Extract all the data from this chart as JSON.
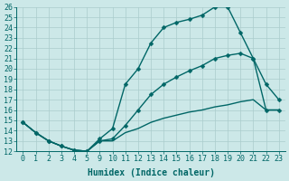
{
  "xlabel": "Humidex (Indice chaleur)",
  "ylabel": "",
  "background_color": "#cce8e8",
  "grid_color": "#aacccc",
  "line_color": "#006666",
  "xtick_labels": [
    "0",
    "1",
    "2",
    "3",
    "4",
    "5",
    "9",
    "10",
    "11",
    "12",
    "13",
    "14",
    "15",
    "16",
    "17",
    "18",
    "19",
    "20",
    "21",
    "22",
    "23"
  ],
  "yticks": [
    12,
    13,
    14,
    15,
    16,
    17,
    18,
    19,
    20,
    21,
    22,
    23,
    24,
    25,
    26
  ],
  "ylim": [
    12,
    26
  ],
  "series": [
    {
      "xi": [
        0,
        1,
        2,
        3,
        4,
        5,
        6,
        7,
        8,
        9,
        10,
        11,
        12,
        13,
        14,
        15,
        16,
        17,
        18,
        19,
        20
      ],
      "y": [
        14.8,
        13.8,
        13.0,
        12.5,
        12.1,
        12.0,
        13.2,
        14.2,
        18.5,
        20.0,
        22.5,
        24.0,
        24.5,
        24.8,
        25.2,
        26.0,
        26.0,
        23.5,
        21.0,
        18.5,
        17.0
      ],
      "marker": true
    },
    {
      "xi": [
        0,
        1,
        2,
        3,
        4,
        5,
        6,
        7,
        8,
        9,
        10,
        11,
        12,
        13,
        14,
        15,
        16,
        17,
        18,
        19,
        20
      ],
      "y": [
        14.8,
        13.8,
        13.0,
        12.5,
        12.1,
        12.0,
        13.0,
        13.2,
        14.5,
        16.0,
        17.5,
        18.5,
        19.2,
        19.8,
        20.3,
        21.0,
        21.3,
        21.5,
        21.0,
        16.0,
        16.0
      ],
      "marker": true
    },
    {
      "xi": [
        0,
        1,
        2,
        3,
        4,
        5,
        6,
        7,
        8,
        9,
        10,
        11,
        12,
        13,
        14,
        15,
        16,
        17,
        18,
        19,
        20
      ],
      "y": [
        14.8,
        13.8,
        13.0,
        12.5,
        12.1,
        12.0,
        13.0,
        13.0,
        13.8,
        14.2,
        14.8,
        15.2,
        15.5,
        15.8,
        16.0,
        16.3,
        16.5,
        16.8,
        17.0,
        16.0,
        16.0
      ],
      "marker": false
    }
  ],
  "marker_size": 2.5,
  "line_width": 1.0,
  "font_size": 6,
  "tick_font_family": "monospace"
}
